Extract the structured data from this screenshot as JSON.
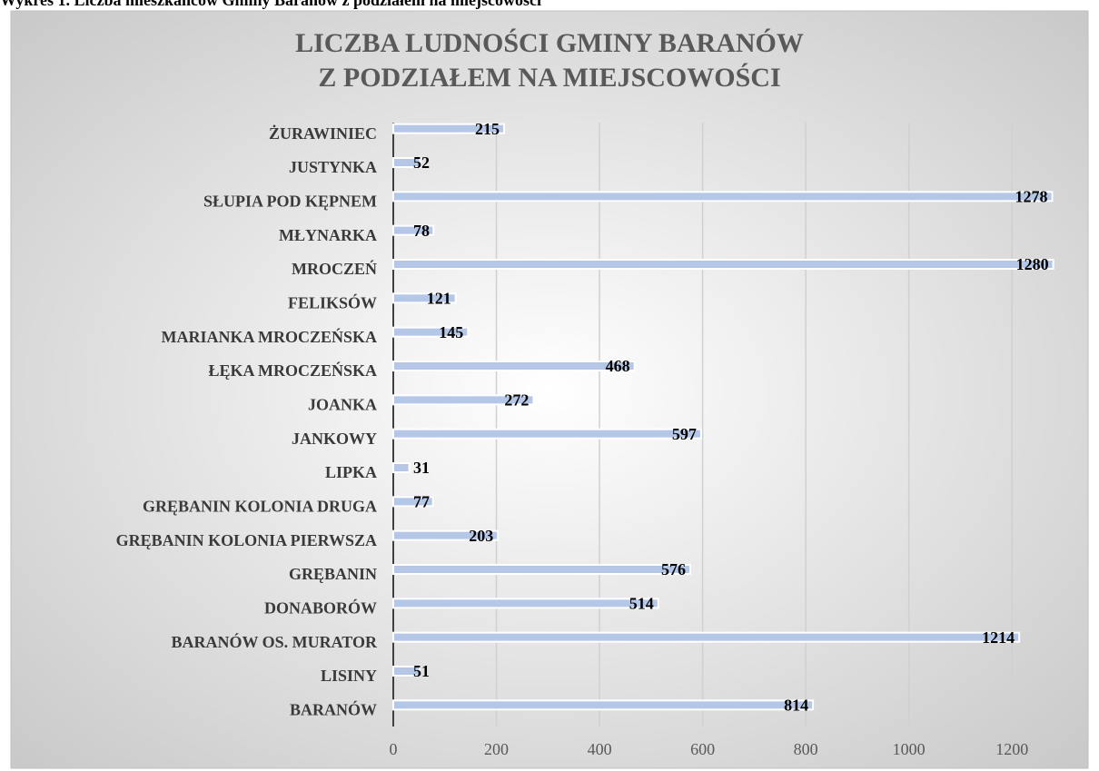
{
  "caption": "Wykres 1. Liczba mieszkańców Gminy Baranów z podziałem na miejscowości",
  "chart_data": {
    "type": "bar",
    "orientation": "horizontal",
    "title": [
      "LICZBA LUDNOŚCI GMINY BARANÓW",
      "Z PODZIAŁEM NA MIEJSCOWOŚCI"
    ],
    "categories": [
      "BARANÓW",
      "LISINY",
      "BARANÓW OS. MURATOR",
      "DONABORÓW",
      "GRĘBANIN",
      "GRĘBANIN KOLONIA PIERWSZA",
      "GRĘBANIN KOLONIA DRUGA",
      "LIPKA",
      "JANKOWY",
      "JOANKA",
      "ŁĘKA MROCZEŃSKA",
      "MARIANKA MROCZEŃSKA",
      "FELIKSÓW",
      "MROCZEŃ",
      "MŁYNARKA",
      "SŁUPIA POD KĘPNEM",
      "JUSTYNKA",
      "ŻURAWINIEC"
    ],
    "values": [
      814,
      51,
      1214,
      514,
      576,
      203,
      77,
      31,
      597,
      272,
      468,
      145,
      121,
      1280,
      78,
      1278,
      52,
      215
    ],
    "color": "#b4c7e7",
    "xlim": [
      0,
      1330
    ],
    "xticks": [
      0,
      200,
      400,
      600,
      800,
      1000,
      1200
    ],
    "grid": true
  }
}
